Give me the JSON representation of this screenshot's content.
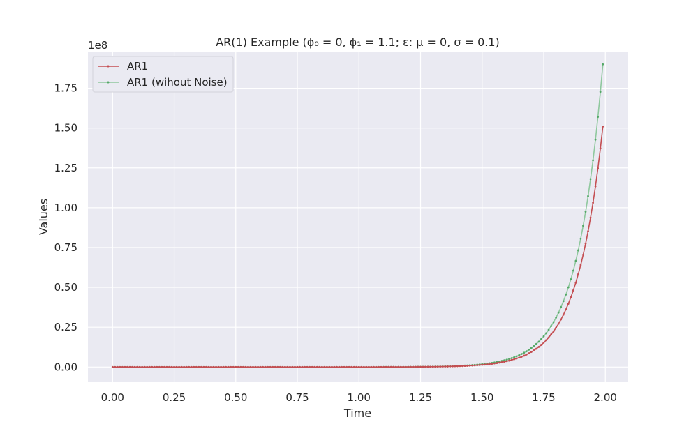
{
  "chart_data": {
    "type": "line",
    "title": "AR(1) Example (ϕ₀ = 0, ϕ₁ = 1.1; ε: μ = 0, σ = 0.1)",
    "xlabel": "Time",
    "ylabel": "Values",
    "offset_text": "1e8",
    "xlim": [
      -0.1,
      2.09
    ],
    "ylim": [
      -0.095,
      1.98
    ],
    "x_ticks": [
      0.0,
      0.25,
      0.5,
      0.75,
      1.0,
      1.25,
      1.5,
      1.75,
      2.0
    ],
    "x_tick_labels": [
      "0.00",
      "0.25",
      "0.50",
      "0.75",
      "1.00",
      "1.25",
      "1.50",
      "1.75",
      "2.00"
    ],
    "y_ticks": [
      0.0,
      0.25,
      0.5,
      0.75,
      1.0,
      1.25,
      1.5,
      1.75
    ],
    "y_tick_labels": [
      "0.00",
      "0.25",
      "0.50",
      "0.75",
      "1.00",
      "1.25",
      "1.50",
      "1.75"
    ],
    "grid": true,
    "legend_position": "top-left",
    "x": {
      "start": 0.0,
      "end": 1.99,
      "step": 0.01
    },
    "series": [
      {
        "name": "AR1",
        "color": "#c44e52",
        "growth_rate": 1.1,
        "end_value": 1.51
      },
      {
        "name": "AR1 (wihout Noise)",
        "color": "#8fc89e",
        "marker_color": "#55a868",
        "growth_rate": 1.1,
        "end_value": 1.9
      }
    ]
  }
}
